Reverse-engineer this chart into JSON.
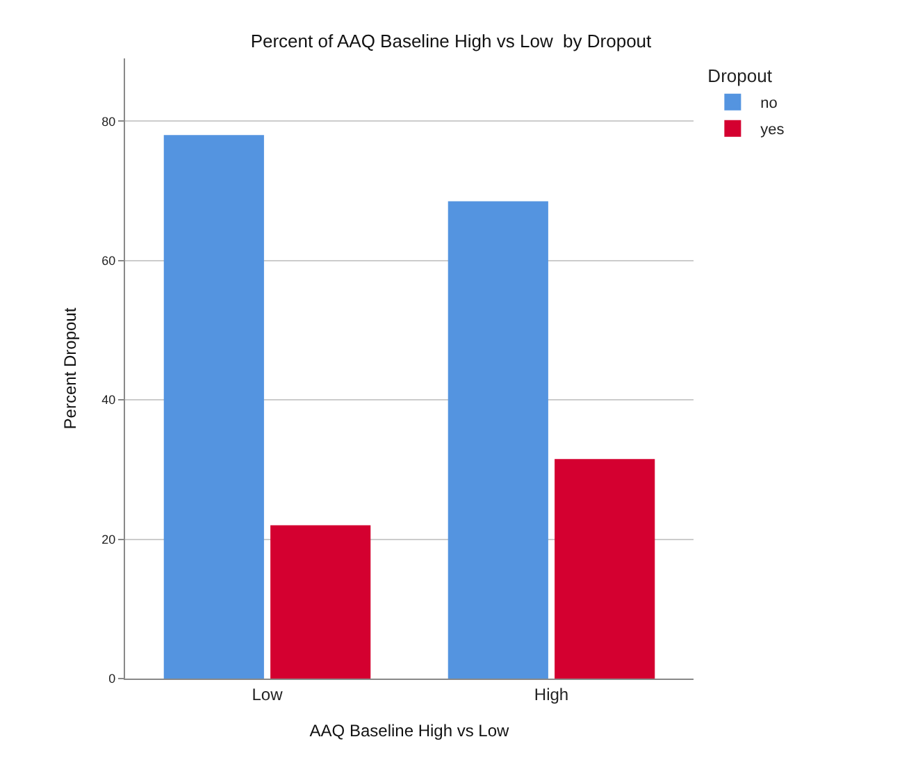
{
  "chart_data": {
    "type": "bar",
    "title": "Percent of AAQ Baseline High vs Low  by Dropout",
    "xlabel": "AAQ Baseline High vs Low",
    "ylabel": "Percent Dropout",
    "legend_title": "Dropout",
    "categories": [
      "Low",
      "High"
    ],
    "series": [
      {
        "name": "no",
        "color": "#5494e0",
        "values": [
          78.0,
          68.5
        ]
      },
      {
        "name": "yes",
        "color": "#d40030",
        "values": [
          22.0,
          31.5
        ]
      }
    ],
    "ylim": [
      0,
      89
    ],
    "yticks": [
      0,
      20,
      40,
      60,
      80
    ],
    "grid": "y",
    "legend": "top right"
  }
}
